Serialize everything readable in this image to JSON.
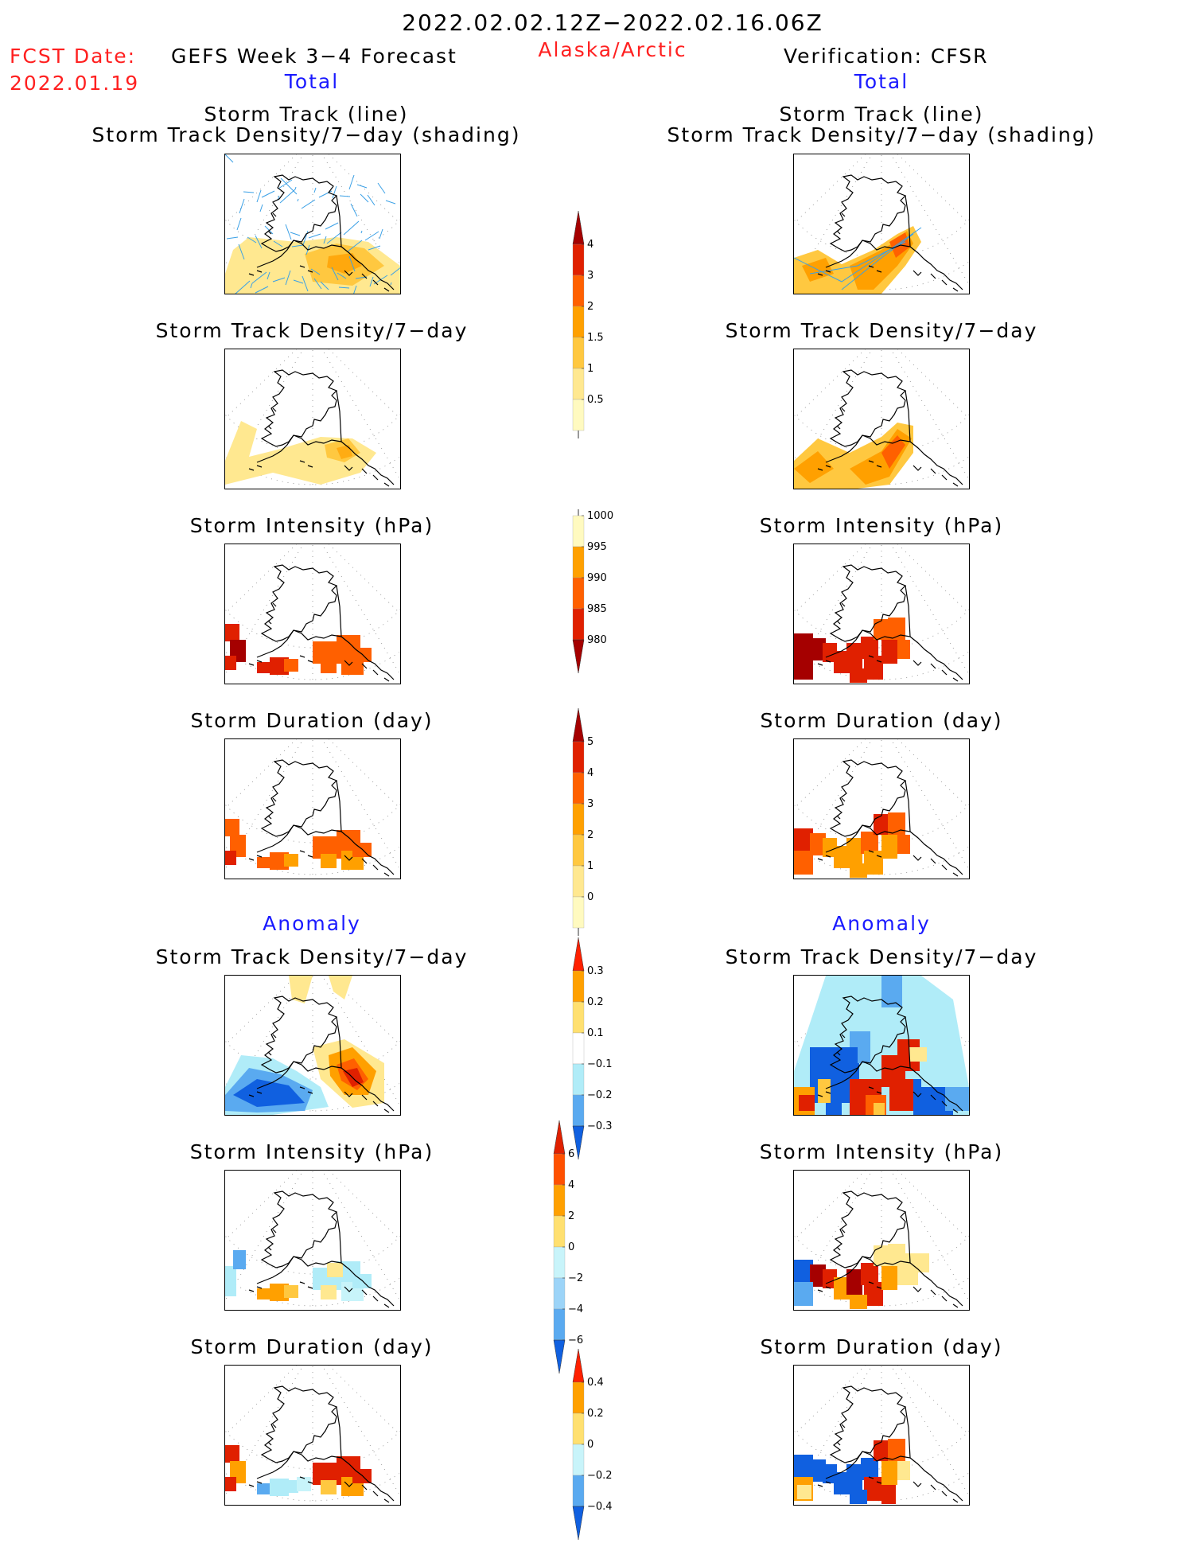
{
  "header": {
    "period": "2022.02.02.12Z−2022.02.16.06Z",
    "fcst_label": "FCST Date:",
    "fcst_date": "2022.01.19",
    "model": "GEFS Week 3−4 Forecast",
    "region": "Alaska/Arctic",
    "verification": "Verification: CFSR"
  },
  "sections": {
    "total_left": "Total",
    "total_right": "Total",
    "anomaly_left": "Anomaly",
    "anomaly_right": "Anomaly"
  },
  "panels": {
    "row1_title_a": "Storm Track (line)",
    "row1_title_b": "Storm Track Density/7−day (shading)",
    "row2_title": "Storm Track Density/7−day",
    "row3_title": "Storm Intensity (hPa)",
    "row4_title": "Storm Duration (day)",
    "row5_title": "Storm Track Density/7−day",
    "row6_title": "Storm Intensity (hPa)",
    "row7_title": "Storm Duration (day)"
  },
  "colorbars": [
    {
      "name": "density-total",
      "labels": [
        "4",
        "3",
        "2",
        "1.5",
        "1",
        "0.5"
      ],
      "colors": [
        "#a50000",
        "#e02000",
        "#ff6000",
        "#ffa000",
        "#ffc840",
        "#ffe890",
        "#fffac0"
      ],
      "arrow": "top"
    },
    {
      "name": "intensity-total",
      "labels": [
        "1000",
        "995",
        "990",
        "985",
        "980"
      ],
      "colors": [
        "#fffac0",
        "#ffa000",
        "#ff6000",
        "#e02000",
        "#a50000"
      ],
      "arrow": "bottom"
    },
    {
      "name": "duration-total",
      "labels": [
        "5",
        "4",
        "3",
        "2",
        "1",
        "0"
      ],
      "colors": [
        "#a50000",
        "#e02000",
        "#ff6000",
        "#ffa000",
        "#ffc840",
        "#ffe890",
        "#fffac0"
      ],
      "arrow": "top"
    },
    {
      "name": "density-anom",
      "labels": [
        "0.3",
        "0.2",
        "0.1",
        "−0.1",
        "−0.2",
        "−0.3"
      ],
      "colors": [
        "#ff2000",
        "#ffa000",
        "#ffe070",
        "#ffffff",
        "#b0ecf8",
        "#5aaaf0",
        "#1060e0"
      ],
      "arrow": "both"
    },
    {
      "name": "intensity-anom",
      "labels": [
        "6",
        "4",
        "2",
        "0",
        "−2",
        "−4",
        "−6"
      ],
      "colors": [
        "#e02000",
        "#ff5000",
        "#ffa000",
        "#ffe070",
        "#c8f4fa",
        "#9cd4f8",
        "#5aaaf0",
        "#1060e0"
      ],
      "arrow": "both"
    },
    {
      "name": "duration-anom",
      "labels": [
        "0.4",
        "0.2",
        "0",
        "−0.2",
        "−0.4"
      ],
      "colors": [
        "#ff2000",
        "#ffa000",
        "#ffe070",
        "#c8f4fa",
        "#5aaaf0",
        "#1060e0"
      ],
      "arrow": "both"
    }
  ]
}
